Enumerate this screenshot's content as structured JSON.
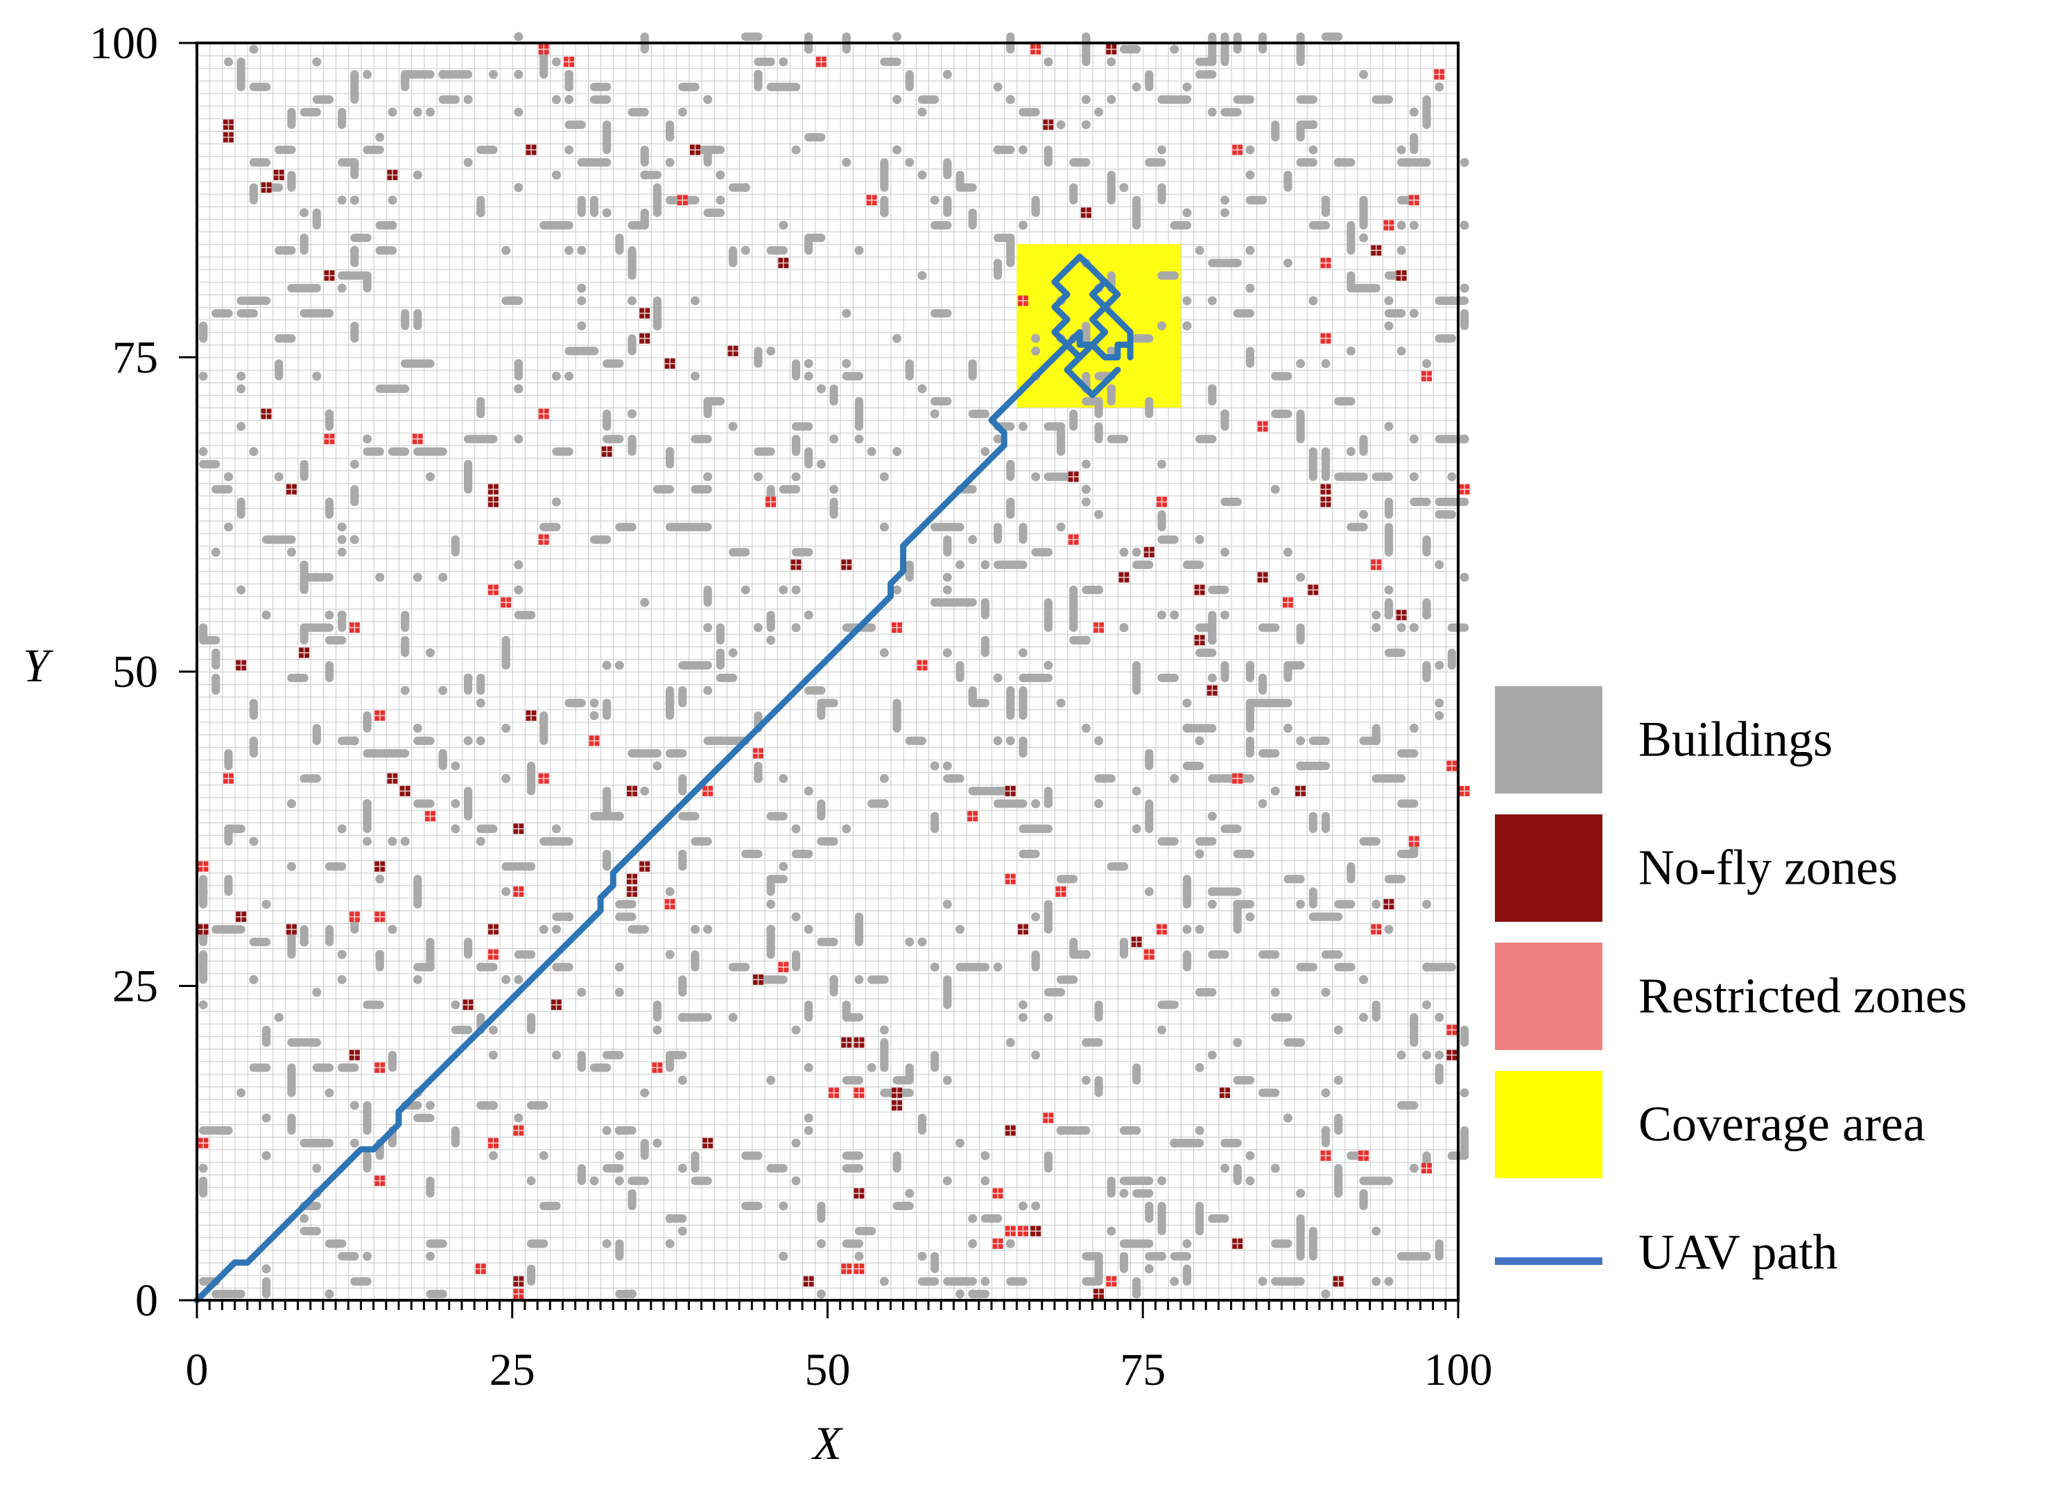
{
  "chart_data": {
    "type": "scatter",
    "title": "",
    "xlabel": "X",
    "ylabel": "Y",
    "xlim": [
      0,
      100
    ],
    "ylim": [
      0,
      100
    ],
    "xticks": [
      "0",
      "25",
      "50",
      "75",
      "100"
    ],
    "yticks": [
      "0",
      "25",
      "50",
      "75",
      "100"
    ],
    "grid": true,
    "grid_step": 1,
    "legend_position": "right",
    "legend": [
      {
        "key": "buildings",
        "label": "Buildings",
        "color": "#a9a9a9"
      },
      {
        "key": "no_fly",
        "label": "No-fly zones",
        "color": "#8b1010"
      },
      {
        "key": "restricted",
        "label": "Restricted zones",
        "color": "#f08080"
      },
      {
        "key": "coverage",
        "label": "Coverage area",
        "color": "#ffff00"
      },
      {
        "key": "path",
        "label": "UAV path",
        "color": "#4472c4"
      }
    ],
    "colors": {
      "buildings": "#a9a9a9",
      "no_fly": "#8b1010",
      "restricted": "#e8302e",
      "coverage": "#ffff00",
      "path": "#2e75b6",
      "grid": "#c8c8c8"
    },
    "coverage_area": {
      "x": [
        65,
        78
      ],
      "y": [
        71,
        84
      ]
    },
    "no_fly_zones": [
      [
        2,
        93
      ],
      [
        2,
        92
      ],
      [
        5,
        88
      ],
      [
        6,
        89
      ],
      [
        15,
        89
      ],
      [
        26,
        91
      ],
      [
        39,
        91
      ],
      [
        10,
        81
      ],
      [
        35,
        78
      ],
      [
        37,
        74
      ],
      [
        42,
        75
      ],
      [
        46,
        82
      ],
      [
        5,
        70
      ],
      [
        7,
        64
      ],
      [
        32,
        67
      ],
      [
        23,
        63
      ],
      [
        23,
        64
      ],
      [
        47,
        58
      ],
      [
        51,
        58
      ],
      [
        69,
        65
      ],
      [
        73,
        57
      ],
      [
        79,
        56
      ],
      [
        79,
        52
      ],
      [
        8,
        51
      ],
      [
        3,
        50
      ],
      [
        26,
        46
      ],
      [
        15,
        41
      ],
      [
        16,
        40
      ],
      [
        34,
        40
      ],
      [
        34,
        33
      ],
      [
        34,
        32
      ],
      [
        35,
        34
      ],
      [
        3,
        30
      ],
      [
        7,
        29
      ],
      [
        0,
        29
      ],
      [
        23,
        29
      ],
      [
        12,
        19
      ],
      [
        21,
        23
      ],
      [
        28,
        23
      ],
      [
        44,
        25
      ],
      [
        52,
        20
      ],
      [
        51,
        20
      ],
      [
        55,
        16
      ],
      [
        55,
        15
      ],
      [
        40,
        12
      ],
      [
        64,
        13
      ],
      [
        66,
        5
      ],
      [
        48,
        1
      ],
      [
        25,
        1
      ],
      [
        72,
        99
      ],
      [
        67,
        93
      ],
      [
        70,
        86
      ],
      [
        84,
        57
      ],
      [
        88,
        56
      ],
      [
        93,
        58
      ],
      [
        95,
        54
      ],
      [
        89,
        64
      ],
      [
        89,
        63
      ],
      [
        95,
        81
      ],
      [
        93,
        83
      ],
      [
        81,
        16
      ],
      [
        82,
        4
      ],
      [
        90,
        1
      ],
      [
        71,
        0
      ],
      [
        94,
        31
      ],
      [
        99,
        19
      ],
      [
        74,
        28
      ],
      [
        65,
        29
      ],
      [
        75,
        59
      ],
      [
        80,
        48
      ],
      [
        64,
        40
      ],
      [
        87,
        40
      ],
      [
        52,
        8
      ],
      [
        35,
        76
      ],
      [
        25,
        37
      ],
      [
        14,
        34
      ]
    ],
    "restricted_zones": [
      [
        27,
        99
      ],
      [
        29,
        98
      ],
      [
        49,
        98
      ],
      [
        66,
        99
      ],
      [
        98,
        97
      ],
      [
        53,
        87
      ],
      [
        38,
        87
      ],
      [
        96,
        87
      ],
      [
        94,
        85
      ],
      [
        82,
        91
      ],
      [
        89,
        82
      ],
      [
        89,
        76
      ],
      [
        97,
        73
      ],
      [
        65,
        79
      ],
      [
        27,
        70
      ],
      [
        17,
        68
      ],
      [
        10,
        68
      ],
      [
        84,
        69
      ],
      [
        45,
        63
      ],
      [
        76,
        63
      ],
      [
        69,
        60
      ],
      [
        27,
        60
      ],
      [
        23,
        56
      ],
      [
        24,
        55
      ],
      [
        93,
        58
      ],
      [
        86,
        55
      ],
      [
        55,
        53
      ],
      [
        71,
        53
      ],
      [
        57,
        50
      ],
      [
        12,
        53
      ],
      [
        31,
        44
      ],
      [
        14,
        46
      ],
      [
        27,
        41
      ],
      [
        2,
        41
      ],
      [
        44,
        43
      ],
      [
        40,
        40
      ],
      [
        18,
        38
      ],
      [
        61,
        38
      ],
      [
        99,
        42
      ],
      [
        100,
        40
      ],
      [
        100,
        64
      ],
      [
        0,
        34
      ],
      [
        25,
        32
      ],
      [
        37,
        31
      ],
      [
        64,
        33
      ],
      [
        68,
        32
      ],
      [
        82,
        41
      ],
      [
        96,
        36
      ],
      [
        12,
        30
      ],
      [
        14,
        30
      ],
      [
        23,
        27
      ],
      [
        46,
        26
      ],
      [
        76,
        29
      ],
      [
        93,
        29
      ],
      [
        75,
        27
      ],
      [
        36,
        18
      ],
      [
        14,
        18
      ],
      [
        52,
        16
      ],
      [
        50,
        16
      ],
      [
        51,
        2
      ],
      [
        52,
        2
      ],
      [
        23,
        12
      ],
      [
        25,
        13
      ],
      [
        14,
        9
      ],
      [
        0,
        12
      ],
      [
        63,
        8
      ],
      [
        63,
        4
      ],
      [
        64,
        5
      ],
      [
        65,
        5
      ],
      [
        67,
        14
      ],
      [
        72,
        1
      ],
      [
        89,
        11
      ],
      [
        92,
        11
      ],
      [
        97,
        10
      ],
      [
        99,
        21
      ],
      [
        22,
        2
      ],
      [
        25,
        0
      ]
    ],
    "uav_path": [
      [
        0,
        0
      ],
      [
        1,
        1
      ],
      [
        2,
        2
      ],
      [
        3,
        3
      ],
      [
        4,
        3
      ],
      [
        5,
        4
      ],
      [
        6,
        5
      ],
      [
        7,
        6
      ],
      [
        8,
        7
      ],
      [
        9,
        8
      ],
      [
        10,
        9
      ],
      [
        11,
        10
      ],
      [
        12,
        11
      ],
      [
        13,
        12
      ],
      [
        14,
        12
      ],
      [
        15,
        13
      ],
      [
        16,
        14
      ],
      [
        16,
        15
      ],
      [
        17,
        16
      ],
      [
        18,
        17
      ],
      [
        19,
        18
      ],
      [
        20,
        19
      ],
      [
        21,
        20
      ],
      [
        22,
        21
      ],
      [
        23,
        22
      ],
      [
        24,
        23
      ],
      [
        25,
        24
      ],
      [
        26,
        25
      ],
      [
        27,
        26
      ],
      [
        28,
        27
      ],
      [
        29,
        28
      ],
      [
        30,
        29
      ],
      [
        31,
        30
      ],
      [
        32,
        31
      ],
      [
        32,
        32
      ],
      [
        33,
        33
      ],
      [
        33,
        34
      ],
      [
        34,
        35
      ],
      [
        35,
        36
      ],
      [
        36,
        37
      ],
      [
        37,
        38
      ],
      [
        38,
        39
      ],
      [
        39,
        40
      ],
      [
        40,
        41
      ],
      [
        41,
        42
      ],
      [
        42,
        43
      ],
      [
        43,
        44
      ],
      [
        44,
        45
      ],
      [
        45,
        46
      ],
      [
        46,
        47
      ],
      [
        47,
        48
      ],
      [
        48,
        49
      ],
      [
        49,
        50
      ],
      [
        50,
        51
      ],
      [
        51,
        52
      ],
      [
        52,
        53
      ],
      [
        53,
        54
      ],
      [
        54,
        55
      ],
      [
        55,
        56
      ],
      [
        55,
        57
      ],
      [
        56,
        58
      ],
      [
        56,
        59
      ],
      [
        56,
        60
      ],
      [
        57,
        61
      ],
      [
        58,
        62
      ],
      [
        59,
        63
      ],
      [
        60,
        64
      ],
      [
        61,
        65
      ],
      [
        62,
        66
      ],
      [
        63,
        67
      ],
      [
        64,
        68
      ],
      [
        64,
        69
      ],
      [
        63,
        70
      ],
      [
        64,
        71
      ],
      [
        65,
        72
      ],
      [
        66,
        73
      ],
      [
        67,
        74
      ],
      [
        68,
        75
      ],
      [
        69,
        76
      ],
      [
        70,
        77
      ],
      [
        70,
        76
      ],
      [
        71,
        76
      ],
      [
        72,
        75
      ],
      [
        73,
        75
      ],
      [
        73,
        76
      ],
      [
        74,
        76
      ],
      [
        74,
        75
      ],
      [
        74,
        77
      ],
      [
        73,
        78
      ],
      [
        72,
        79
      ],
      [
        71,
        80
      ],
      [
        72,
        81
      ],
      [
        71,
        82
      ],
      [
        70,
        83
      ],
      [
        69,
        82
      ],
      [
        68,
        81
      ],
      [
        69,
        80
      ],
      [
        68,
        79
      ],
      [
        69,
        78
      ],
      [
        68,
        77
      ],
      [
        69,
        76
      ],
      [
        70,
        75
      ],
      [
        69,
        76
      ],
      [
        68,
        77
      ],
      [
        69,
        78
      ],
      [
        68,
        79
      ],
      [
        69,
        80
      ],
      [
        68,
        81
      ],
      [
        69,
        82
      ],
      [
        70,
        83
      ],
      [
        71,
        82
      ],
      [
        72,
        81
      ],
      [
        73,
        80
      ],
      [
        72,
        79
      ],
      [
        71,
        78
      ],
      [
        72,
        77
      ],
      [
        71,
        76
      ],
      [
        70,
        75
      ],
      [
        69,
        74
      ],
      [
        70,
        73
      ],
      [
        71,
        72
      ],
      [
        72,
        73
      ],
      [
        73,
        74
      ]
    ]
  }
}
